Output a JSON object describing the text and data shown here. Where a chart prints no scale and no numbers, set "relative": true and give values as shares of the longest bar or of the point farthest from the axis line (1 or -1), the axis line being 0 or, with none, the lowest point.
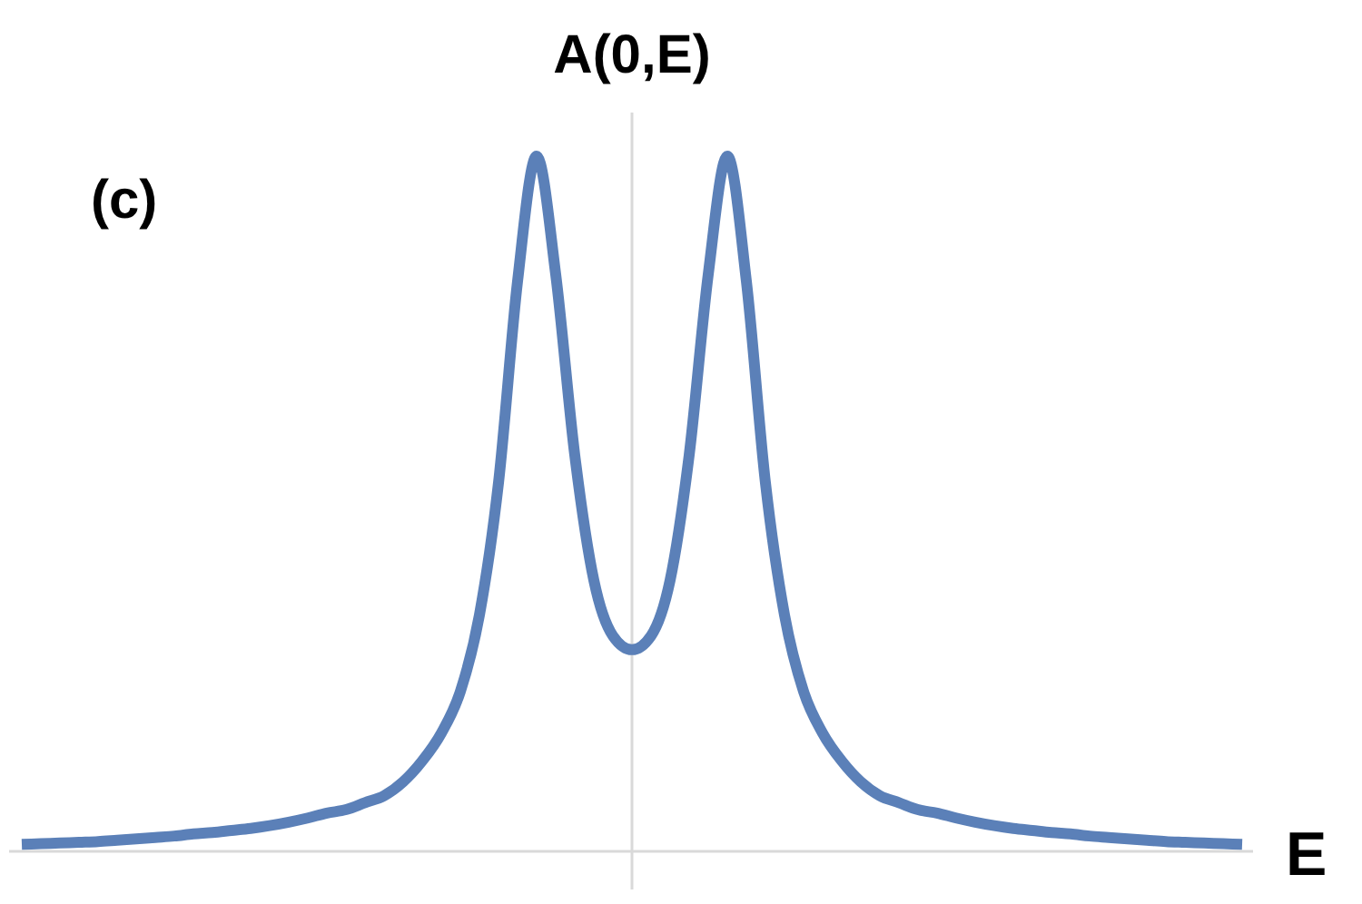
{
  "chart_data": {
    "type": "line",
    "relative": true,
    "xlabel": "E",
    "ylabel": "A(0,E)",
    "annotations": [
      "(c)"
    ],
    "categories": [
      null,
      null,
      null,
      null,
      null,
      null,
      null,
      null,
      null,
      null,
      null,
      null,
      null,
      null,
      null,
      null,
      null,
      null,
      null,
      null,
      null,
      null,
      null,
      null,
      null,
      null,
      null,
      null,
      null,
      null,
      null,
      null,
      null,
      null,
      null,
      null,
      null,
      null,
      null,
      null,
      null,
      null,
      null,
      null,
      null,
      null,
      null,
      null,
      null,
      null,
      null,
      null,
      null,
      null,
      null,
      null,
      null,
      null,
      null,
      null,
      null,
      null,
      null,
      null,
      null
    ],
    "series": [
      {
        "color": "#5b80b8",
        "values": [
          0.01,
          0.011,
          0.012,
          0.013,
          0.014,
          0.016,
          0.018,
          0.02,
          0.022,
          0.025,
          0.027,
          0.03,
          0.033,
          0.037,
          0.042,
          0.048,
          0.055,
          0.06,
          0.07,
          0.08,
          0.1,
          0.13,
          0.17,
          0.23,
          0.34,
          0.53,
          0.82,
          1,
          0.83,
          0.57,
          0.39,
          0.31,
          0.29,
          0.31,
          0.39,
          0.57,
          0.83,
          1,
          0.82,
          0.53,
          0.34,
          0.23,
          0.17,
          0.13,
          0.1,
          0.08,
          0.07,
          0.06,
          0.055,
          0.048,
          0.042,
          0.037,
          0.033,
          0.03,
          0.027,
          0.025,
          0.022,
          0.02,
          0.018,
          0.016,
          0.014,
          0.013,
          0.012,
          0.011,
          0.01
        ]
      }
    ]
  }
}
